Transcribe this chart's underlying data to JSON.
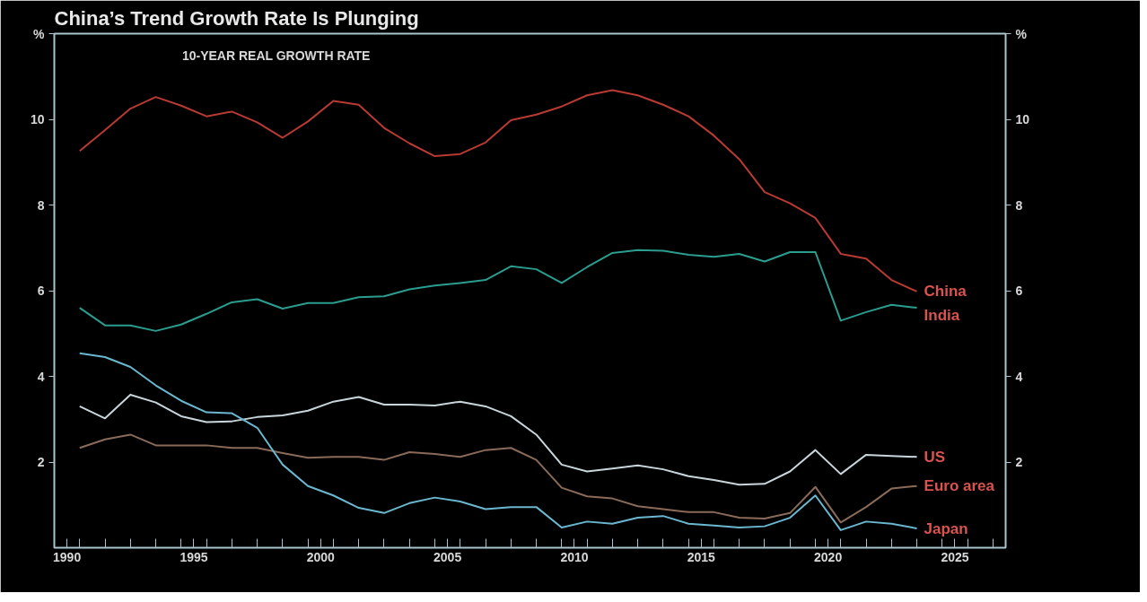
{
  "chart_data": {
    "type": "line",
    "title": "China’s Trend Growth Rate Is Plunging",
    "subtitle": "10-YEAR REAL GROWTH RATE",
    "ylabel": "%",
    "y2label": "%",
    "x": [
      1990.5,
      1991.5,
      1992.5,
      1993.5,
      1994.5,
      1995.5,
      1996.5,
      1997.5,
      1998.5,
      1999.5,
      2000.5,
      2001.5,
      2002.5,
      2003.5,
      2004.5,
      2005.5,
      2006.5,
      2007.5,
      2008.5,
      2009.5,
      2010.5,
      2011.5,
      2012.5,
      2013.5,
      2014.5,
      2015.5,
      2016.5,
      2017.5,
      2018.5,
      2019.5,
      2020.5,
      2021.5,
      2022.5,
      2023.5
    ],
    "series": [
      {
        "name": "China",
        "color": "#b83a32",
        "values": [
          9.26,
          9.75,
          10.25,
          10.52,
          10.32,
          10.07,
          10.18,
          9.93,
          9.57,
          9.95,
          10.43,
          10.34,
          9.8,
          9.44,
          9.14,
          9.19,
          9.46,
          9.98,
          10.11,
          10.3,
          10.56,
          10.68,
          10.56,
          10.34,
          10.07,
          9.62,
          9.07,
          8.3,
          8.04,
          7.7,
          6.86,
          6.75,
          6.25,
          5.98
        ]
      },
      {
        "name": "India",
        "color": "#2a9d8f",
        "values": [
          5.6,
          5.19,
          5.19,
          5.06,
          5.21,
          5.46,
          5.73,
          5.8,
          5.58,
          5.71,
          5.71,
          5.85,
          5.87,
          6.03,
          6.12,
          6.18,
          6.25,
          6.57,
          6.5,
          6.18,
          6.55,
          6.88,
          6.95,
          6.93,
          6.84,
          6.79,
          6.86,
          6.68,
          6.9,
          6.9,
          5.3,
          5.5,
          5.67,
          5.6
        ]
      },
      {
        "name": "US",
        "color": "#c8d6dc",
        "values": [
          3.3,
          3.02,
          3.57,
          3.39,
          3.07,
          2.93,
          2.95,
          3.05,
          3.09,
          3.2,
          3.41,
          3.52,
          3.34,
          3.34,
          3.32,
          3.41,
          3.3,
          3.07,
          2.64,
          1.94,
          1.78,
          1.85,
          1.92,
          1.83,
          1.67,
          1.58,
          1.47,
          1.49,
          1.78,
          2.28,
          1.72,
          2.17,
          2.14,
          2.12
        ]
      },
      {
        "name": "Euro area",
        "color": "#8a6a58",
        "values": [
          2.33,
          2.53,
          2.64,
          2.39,
          2.39,
          2.39,
          2.33,
          2.33,
          2.21,
          2.1,
          2.12,
          2.12,
          2.05,
          2.23,
          2.19,
          2.12,
          2.28,
          2.33,
          2.05,
          1.4,
          1.2,
          1.15,
          0.97,
          0.9,
          0.83,
          0.83,
          0.7,
          0.68,
          0.81,
          1.42,
          0.59,
          0.95,
          1.38,
          1.44
        ]
      },
      {
        "name": "Japan",
        "color": "#6ab7cf",
        "values": [
          4.54,
          4.45,
          4.22,
          3.79,
          3.43,
          3.16,
          3.14,
          2.8,
          1.94,
          1.44,
          1.22,
          0.93,
          0.81,
          1.04,
          1.17,
          1.08,
          0.9,
          0.95,
          0.95,
          0.47,
          0.61,
          0.56,
          0.7,
          0.74,
          0.56,
          0.52,
          0.47,
          0.5,
          0.7,
          1.22,
          0.41,
          0.61,
          0.56,
          0.45
        ]
      }
    ],
    "xlim": [
      1989.5,
      2027
    ],
    "xticks": [
      {
        "value": 1990,
        "label": "1990"
      },
      {
        "value": 1995,
        "label": "1995"
      },
      {
        "value": 2000,
        "label": "2000"
      },
      {
        "value": 2005,
        "label": "2005"
      },
      {
        "value": 2010,
        "label": "2010"
      },
      {
        "value": 2015,
        "label": "2015"
      },
      {
        "value": 2020,
        "label": "2020"
      },
      {
        "value": 2025,
        "label": "2025"
      },
      {
        "value": 1990.5,
        "label": null
      },
      {
        "value": 1991.5,
        "label": null
      },
      {
        "value": 1992.5,
        "label": null
      },
      {
        "value": 1993.5,
        "label": null
      },
      {
        "value": 1994.5,
        "label": null
      },
      {
        "value": 1995.5,
        "label": null
      },
      {
        "value": 1996.5,
        "label": null
      },
      {
        "value": 1997.5,
        "label": null
      },
      {
        "value": 1998.5,
        "label": null
      },
      {
        "value": 1999.5,
        "label": null
      },
      {
        "value": 2000.5,
        "label": null
      },
      {
        "value": 2001.5,
        "label": null
      },
      {
        "value": 2002.5,
        "label": null
      },
      {
        "value": 2003.5,
        "label": null
      },
      {
        "value": 2004.5,
        "label": null
      },
      {
        "value": 2005.5,
        "label": null
      },
      {
        "value": 2006.5,
        "label": null
      },
      {
        "value": 2007.5,
        "label": null
      },
      {
        "value": 2008.5,
        "label": null
      },
      {
        "value": 2009.5,
        "label": null
      },
      {
        "value": 2010.5,
        "label": null
      },
      {
        "value": 2011.5,
        "label": null
      },
      {
        "value": 2012.5,
        "label": null
      },
      {
        "value": 2013.5,
        "label": null
      },
      {
        "value": 2014.5,
        "label": null
      },
      {
        "value": 2015.5,
        "label": null
      },
      {
        "value": 2016.5,
        "label": null
      },
      {
        "value": 2017.5,
        "label": null
      },
      {
        "value": 2018.5,
        "label": null
      },
      {
        "value": 2019.5,
        "label": null
      },
      {
        "value": 2020.5,
        "label": null
      },
      {
        "value": 2021.5,
        "label": null
      },
      {
        "value": 2022.5,
        "label": null
      },
      {
        "value": 2023.5,
        "label": null
      },
      {
        "value": 2024.5,
        "label": null
      },
      {
        "value": 2025.5,
        "label": null
      },
      {
        "value": 2026.5,
        "label": null
      }
    ],
    "ylim": [
      0,
      12
    ],
    "yticks": [
      2,
      4,
      6,
      8,
      10
    ],
    "y2lim": [
      0,
      12
    ],
    "y2ticks": [
      2,
      4,
      6,
      8,
      10
    ],
    "grid": false,
    "line_style": "solid",
    "marker": "none"
  }
}
